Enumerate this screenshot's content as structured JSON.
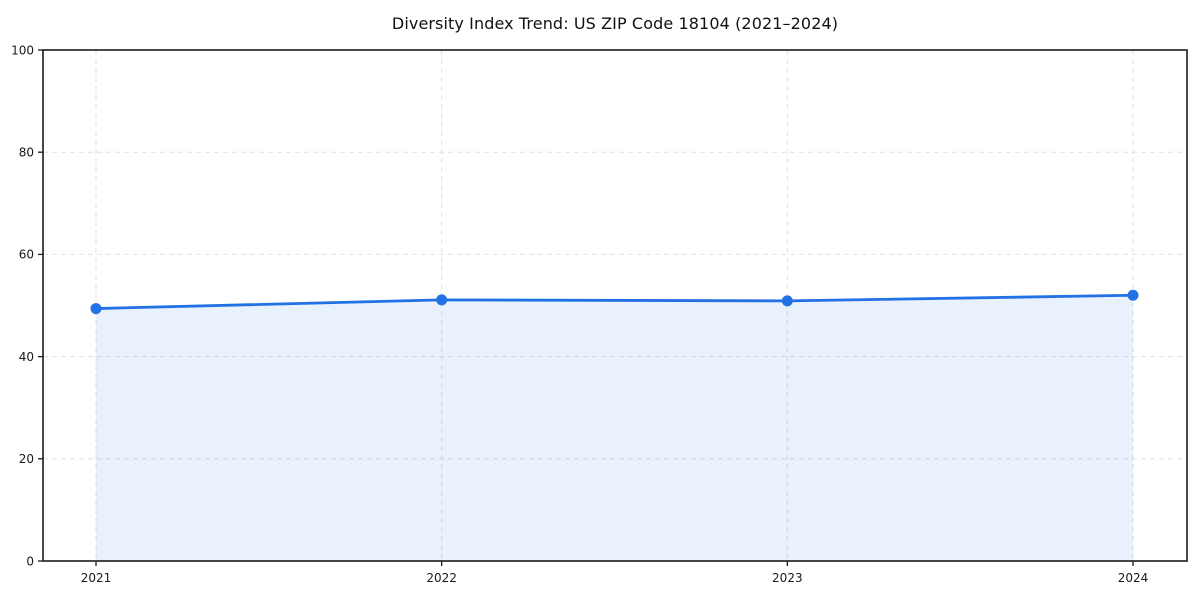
{
  "chart_data": {
    "type": "line",
    "title": "Diversity Index Trend: US ZIP Code 18104 (2021–2024)",
    "x": [
      "2021",
      "2022",
      "2023",
      "2024"
    ],
    "series": [
      {
        "name": "Diversity Index",
        "values": [
          49.4,
          51.1,
          50.9,
          52.0
        ]
      }
    ],
    "xlabel": "",
    "ylabel": "",
    "ylim": [
      0,
      100
    ],
    "yticks": [
      0,
      20,
      40,
      60,
      80,
      100
    ],
    "grid": true,
    "grid_style": "dashed",
    "legend_position": "none",
    "area_fill": true,
    "marker": "circle",
    "colors": {
      "line": "#2271e5",
      "marker": "#2271e5",
      "area_fill": "rgba(34,113,229,0.10)",
      "grid": "#e0e0e0",
      "spine": "#1a1a1a",
      "text": "#1a1a1a",
      "background": "#ffffff"
    }
  }
}
